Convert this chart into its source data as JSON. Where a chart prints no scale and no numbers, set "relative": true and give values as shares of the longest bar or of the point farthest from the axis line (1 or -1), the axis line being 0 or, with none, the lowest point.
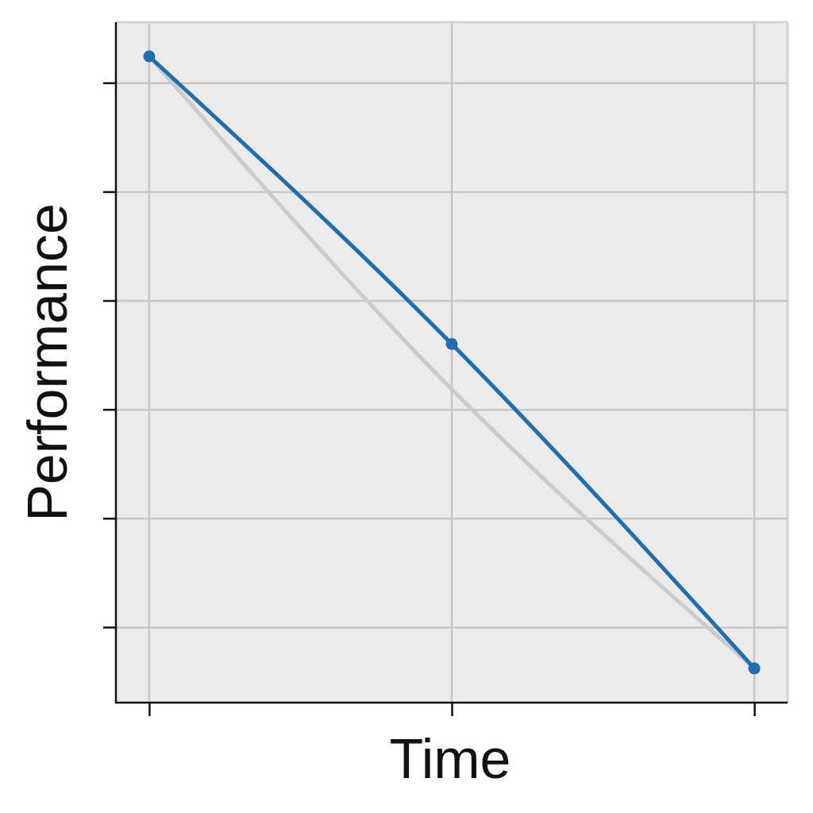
{
  "chart_data": {
    "type": "line",
    "xlabel": "Time",
    "ylabel": "Performance",
    "categories": [
      null,
      null,
      null
    ],
    "relative": true,
    "grid": true,
    "series": [
      {
        "type": "line",
        "color": "#cbcbcb",
        "values": [
          1,
          0.485,
          0.053
        ]
      },
      {
        "type": "line",
        "color": "#1f6fb0",
        "values": [
          1,
          0.555,
          0.053
        ],
        "marker": "circle"
      }
    ]
  }
}
